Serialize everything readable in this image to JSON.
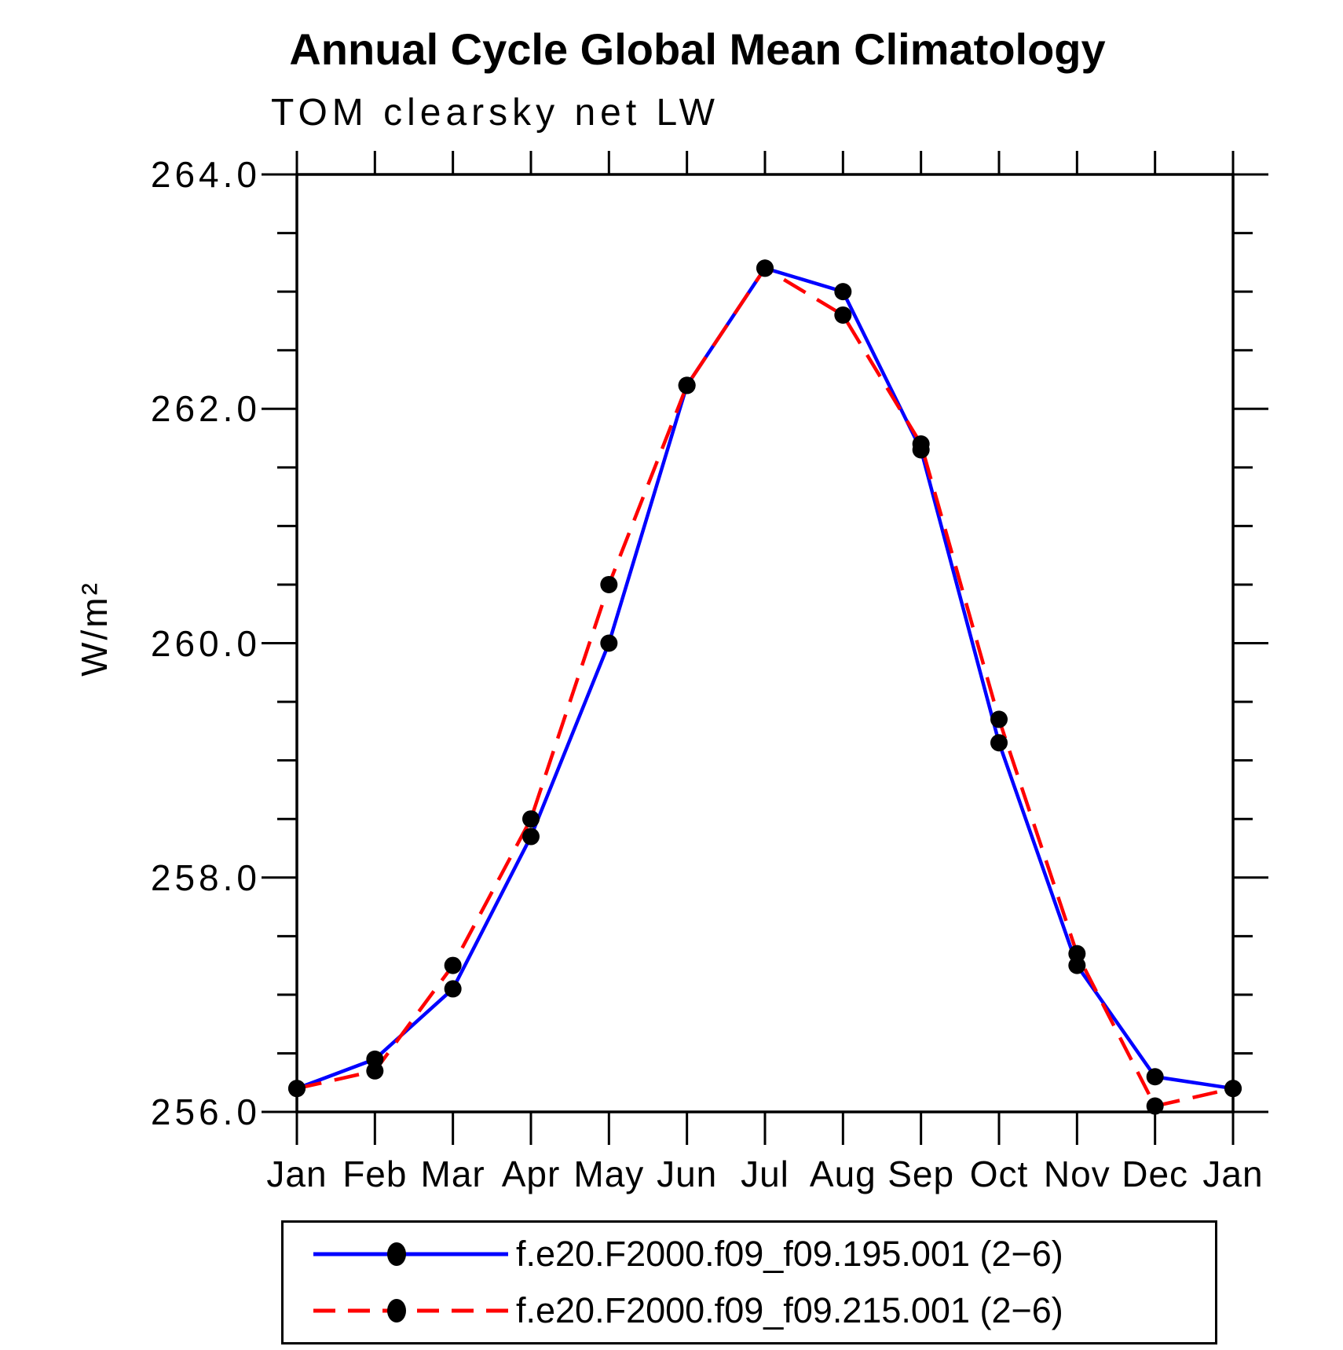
{
  "title": "Annual Cycle Global Mean Climatology",
  "subtitle": "TOM clearsky net LW",
  "y_axis": {
    "unit_label": "W/m²",
    "tick_labels": [
      "264.0",
      "262.0",
      "260.0",
      "258.0",
      "256.0"
    ],
    "tick_values": [
      264.0,
      262.0,
      260.0,
      258.0,
      256.0
    ],
    "minor_step": 0.5,
    "min": 256.0,
    "max": 264.0
  },
  "x_axis": {
    "tick_labels": [
      "Jan",
      "Feb",
      "Mar",
      "Apr",
      "May",
      "Jun",
      "Jul",
      "Aug",
      "Sep",
      "Oct",
      "Nov",
      "Dec",
      "Jan"
    ]
  },
  "legend": {
    "items": [
      {
        "label": "f.e20.F2000.f09_f09.195.001 (2−6)",
        "color": "#0000ff",
        "line_style": "solid"
      },
      {
        "label": "f.e20.F2000.f09_f09.215.001 (2−6)",
        "color": "#ff0000",
        "line_style": "dashed"
      }
    ]
  },
  "colors": {
    "axis": "#000000",
    "marker": "#000000",
    "series_blue": "#0000ff",
    "series_red": "#ff0000"
  },
  "chart_data": {
    "type": "line",
    "title": "Annual Cycle Global Mean Climatology",
    "subtitle": "TOM clearsky net LW",
    "ylabel": "W/m²",
    "xlabel": "",
    "ylim": [
      256.0,
      264.0
    ],
    "y_major_step": 2.0,
    "y_minor_step": 0.5,
    "grid": false,
    "legend_position": "bottom",
    "categories": [
      "Jan",
      "Feb",
      "Mar",
      "Apr",
      "May",
      "Jun",
      "Jul",
      "Aug",
      "Sep",
      "Oct",
      "Nov",
      "Dec",
      "Jan"
    ],
    "marker": "filled-circle",
    "series": [
      {
        "name": "f.e20.F2000.f09_f09.195.001 (2-6)",
        "color": "#0000ff",
        "line_style": "solid",
        "values": [
          256.2,
          256.45,
          257.05,
          258.35,
          260.0,
          262.2,
          263.2,
          263.0,
          261.65,
          259.15,
          257.25,
          256.3,
          256.2
        ]
      },
      {
        "name": "f.e20.F2000.f09_f09.215.001 (2-6)",
        "color": "#ff0000",
        "line_style": "dashed",
        "values": [
          256.2,
          256.35,
          257.25,
          258.5,
          260.5,
          262.2,
          263.2,
          262.8,
          261.7,
          259.35,
          257.35,
          256.05,
          256.2
        ]
      }
    ]
  }
}
